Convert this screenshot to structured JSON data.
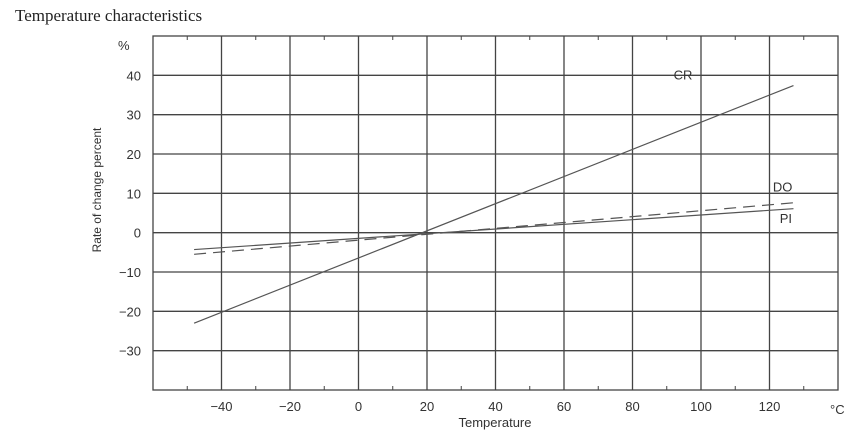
{
  "chart_data": {
    "type": "line",
    "title": "Temperature characteristics",
    "xlabel": "Temperature",
    "ylabel": "Rate of change percent",
    "x_unit": "°C",
    "y_unit": "%",
    "xlim": [
      -60,
      140
    ],
    "ylim": [
      -40,
      50
    ],
    "xticks": [
      -40,
      -20,
      0,
      20,
      40,
      60,
      80,
      100,
      120
    ],
    "yticks": [
      -30,
      -20,
      -10,
      0,
      10,
      20,
      30,
      40
    ],
    "xtick_labels": [
      "−40",
      "−20",
      "0",
      "20",
      "40",
      "60",
      "80",
      "100",
      "120"
    ],
    "ytick_labels": [
      "−30",
      "−20",
      "−10",
      "0",
      "10",
      "20",
      "30",
      "40"
    ],
    "grid": true,
    "series": [
      {
        "name": "CR",
        "style": "solid",
        "x": [
          -48,
          127
        ],
        "y": [
          -23,
          37.4
        ]
      },
      {
        "name": "DO",
        "style": "dashed",
        "x": [
          -48,
          127
        ],
        "y": [
          -5.5,
          7.6
        ]
      },
      {
        "name": "PI",
        "style": "solid",
        "x": [
          -48,
          127
        ],
        "y": [
          -4.3,
          6.1
        ]
      }
    ],
    "line_color": "#555555"
  }
}
